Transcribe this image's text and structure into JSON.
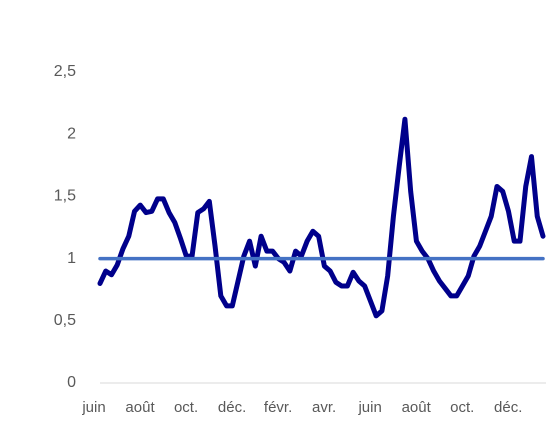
{
  "chart_data": {
    "type": "line",
    "categories": [
      "juin",
      null,
      null,
      null,
      null,
      null,
      null,
      null,
      "août",
      null,
      null,
      null,
      null,
      null,
      null,
      null,
      "oct.",
      null,
      null,
      null,
      null,
      null,
      null,
      null,
      "déc.",
      null,
      null,
      null,
      null,
      null,
      null,
      null,
      "févr.",
      null,
      null,
      null,
      null,
      null,
      null,
      null,
      "avr.",
      null,
      null,
      null,
      null,
      null,
      null,
      null,
      "juin",
      null,
      null,
      null,
      null,
      null,
      null,
      null,
      "août",
      null,
      null,
      null,
      null,
      null,
      null,
      null,
      "oct.",
      null,
      null,
      null,
      null,
      null,
      null,
      null,
      "déc.",
      null,
      null,
      null,
      null,
      null
    ],
    "series": [
      {
        "color": "#00008b",
        "values": [
          0.8,
          0.9,
          0.87,
          0.95,
          1.08,
          1.18,
          1.38,
          1.43,
          1.37,
          1.38,
          1.48,
          1.48,
          1.37,
          1.29,
          1.16,
          1.02,
          1.02,
          1.37,
          1.4,
          1.46,
          1.1,
          0.7,
          0.62,
          0.62,
          0.82,
          1.02,
          1.14,
          0.94,
          1.18,
          1.06,
          1.06,
          1.0,
          0.97,
          0.9,
          1.06,
          1.02,
          1.14,
          1.22,
          1.18,
          0.94,
          0.9,
          0.81,
          0.78,
          0.78,
          0.89,
          0.82,
          0.78,
          0.66,
          0.54,
          0.58,
          0.86,
          1.34,
          1.74,
          2.12,
          1.54,
          1.14,
          1.06,
          1.0,
          0.9,
          0.82,
          0.76,
          0.7,
          0.7,
          0.78,
          0.86,
          1.02,
          1.1,
          1.22,
          1.34,
          1.58,
          1.54,
          1.38,
          1.14,
          1.14,
          1.58,
          1.82,
          1.34,
          1.18
        ]
      },
      {
        "color": "#4472c4",
        "values": [
          1,
          1,
          1,
          1,
          1,
          1,
          1,
          1,
          1,
          1,
          1,
          1,
          1,
          1,
          1,
          1,
          1,
          1,
          1,
          1,
          1,
          1,
          1,
          1,
          1,
          1,
          1,
          1,
          1,
          1,
          1,
          1,
          1,
          1,
          1,
          1,
          1,
          1,
          1,
          1,
          1,
          1,
          1,
          1,
          1,
          1,
          1,
          1,
          1,
          1,
          1,
          1,
          1,
          1,
          1,
          1,
          1,
          1,
          1,
          1,
          1,
          1,
          1,
          1,
          1,
          1,
          1,
          1,
          1,
          1,
          1,
          1,
          1,
          1,
          1,
          1,
          1,
          1
        ]
      }
    ],
    "ylim": [
      0,
      2.5
    ],
    "yticks": [
      0,
      {
        "value": 0.5,
        "label": "0,5"
      },
      1,
      {
        "value": 1.5,
        "label": "1,5"
      },
      2,
      {
        "value": 2.5,
        "label": "2,5"
      }
    ]
  }
}
